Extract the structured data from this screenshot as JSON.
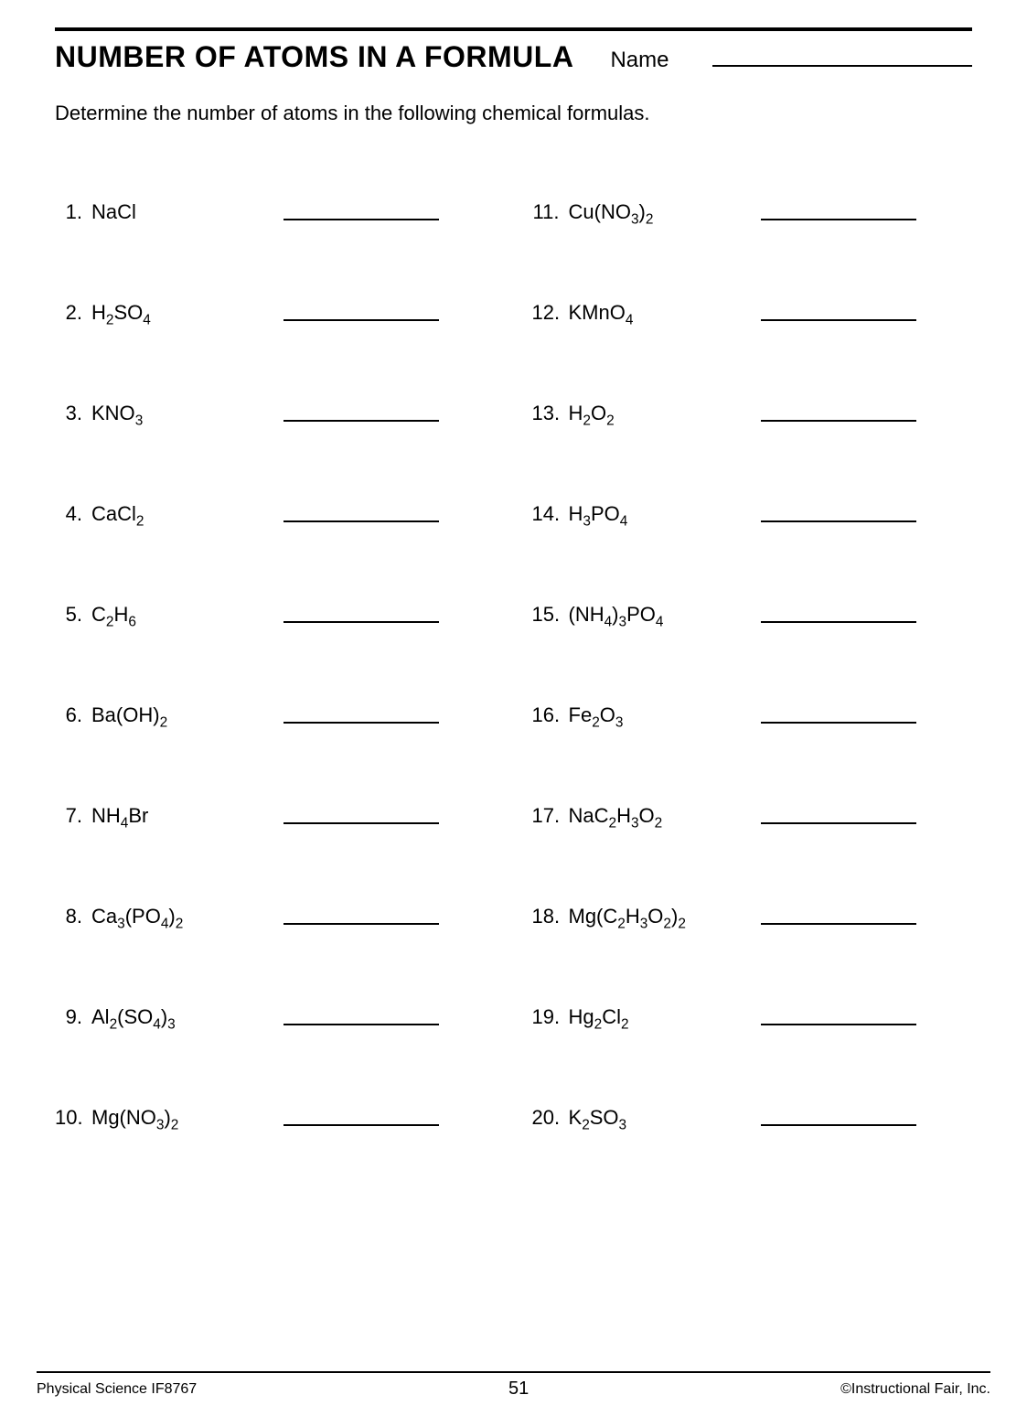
{
  "title": "NUMBER OF ATOMS IN A FORMULA",
  "name_label": "Name",
  "instructions": "Determine the number of atoms in the following chemical formulas.",
  "left_items": [
    {
      "n": "1.",
      "formula_html": "NaCl"
    },
    {
      "n": "2.",
      "formula_html": "H<sub>2</sub>SO<sub>4</sub>"
    },
    {
      "n": "3.",
      "formula_html": "KNO<sub>3</sub>"
    },
    {
      "n": "4.",
      "formula_html": "CaCl<sub>2</sub>"
    },
    {
      "n": "5.",
      "formula_html": "C<sub>2</sub>H<sub>6</sub>"
    },
    {
      "n": "6.",
      "formula_html": "Ba(OH)<sub>2</sub>"
    },
    {
      "n": "7.",
      "formula_html": "NH<sub>4</sub>Br"
    },
    {
      "n": "8.",
      "formula_html": "Ca<sub>3</sub>(PO<sub>4</sub>)<sub>2</sub>"
    },
    {
      "n": "9.",
      "formula_html": "Al<sub>2</sub>(SO<sub>4</sub>)<sub>3</sub>"
    },
    {
      "n": "10.",
      "formula_html": "Mg(NO<sub>3</sub>)<sub>2</sub>"
    }
  ],
  "right_items": [
    {
      "n": "11.",
      "formula_html": "Cu(NO<sub>3</sub>)<sub>2</sub>"
    },
    {
      "n": "12.",
      "formula_html": "KMnO<sub>4</sub>"
    },
    {
      "n": "13.",
      "formula_html": "H<sub>2</sub>O<sub>2</sub>"
    },
    {
      "n": "14.",
      "formula_html": "H<sub>3</sub>PO<sub>4</sub>"
    },
    {
      "n": "15.",
      "formula_html": "(NH<sub>4</sub>)<sub>3</sub>PO<sub>4</sub>"
    },
    {
      "n": "16.",
      "formula_html": "Fe<sub>2</sub>O<sub>3</sub>"
    },
    {
      "n": "17.",
      "formula_html": "NaC<sub>2</sub>H<sub>3</sub>O<sub>2</sub>"
    },
    {
      "n": "18.",
      "formula_html": "Mg(C<sub>2</sub>H<sub>3</sub>O<sub>2</sub>)<sub>2</sub>"
    },
    {
      "n": "19.",
      "formula_html": "Hg<sub>2</sub>Cl<sub>2</sub>"
    },
    {
      "n": "20.",
      "formula_html": "K<sub>2</sub>SO<sub>3</sub>"
    }
  ],
  "footer_left": "Physical Science IF8767",
  "page_number": "51",
  "footer_right": "©Instructional Fair, Inc."
}
